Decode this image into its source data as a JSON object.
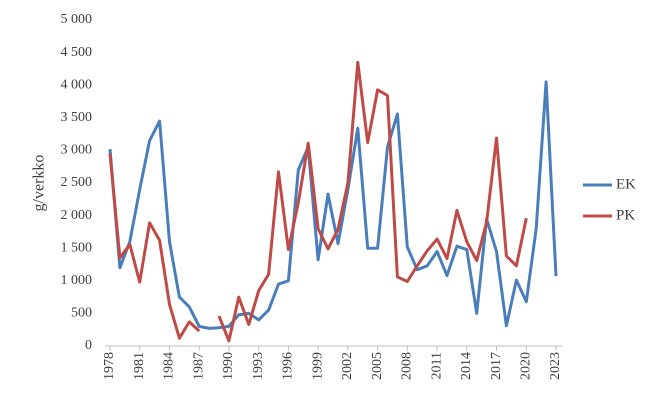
{
  "chart_data": {
    "type": "line",
    "y_label": "g/verkko",
    "x": [
      1978,
      1979,
      1980,
      1981,
      1982,
      1983,
      1984,
      1985,
      1986,
      1987,
      1988,
      1989,
      1990,
      1991,
      1992,
      1993,
      1994,
      1995,
      1996,
      1997,
      1998,
      1999,
      2000,
      2001,
      2002,
      2003,
      2004,
      2005,
      2006,
      2007,
      2008,
      2009,
      2010,
      2011,
      2012,
      2013,
      2014,
      2015,
      2016,
      2017,
      2018,
      2019,
      2020,
      2021,
      2022,
      2023
    ],
    "xlim": [
      1978,
      2023
    ],
    "xticks": [
      1978,
      1981,
      1984,
      1987,
      1990,
      1993,
      1996,
      1999,
      2002,
      2005,
      2008,
      2011,
      2014,
      2017,
      2020,
      2023
    ],
    "ylim": [
      0,
      5000
    ],
    "yticks": [
      0,
      500,
      {
        "value": 1000,
        "label": "1 000"
      },
      {
        "value": 1500,
        "label": "1 500"
      },
      {
        "value": 2000,
        "label": "2 000"
      },
      {
        "value": 2500,
        "label": "2 500"
      },
      {
        "value": 3000,
        "label": "3 000"
      },
      {
        "value": 3500,
        "label": "3 500"
      },
      {
        "value": 4000,
        "label": "4 000"
      },
      {
        "value": 4500,
        "label": "4 500"
      },
      {
        "value": 5000,
        "label": "5 000"
      }
    ],
    "grid": false,
    "legend": "right",
    "series": [
      {
        "name": "EK",
        "color": "#4a7ebb",
        "values": [
          3020,
          1200,
          1600,
          2400,
          3150,
          3450,
          1600,
          750,
          600,
          300,
          270,
          280,
          300,
          480,
          500,
          400,
          550,
          950,
          1000,
          2700,
          3050,
          1320,
          2330,
          1570,
          2400,
          3340,
          1500,
          1500,
          3050,
          3560,
          1520,
          1170,
          1230,
          1450,
          1080,
          1530,
          1480,
          500,
          1950,
          1450,
          310,
          1010,
          680,
          1800,
          4050,
          1070
        ]
      },
      {
        "name": "PK",
        "color": "#be4b48",
        "values": [
          2950,
          1350,
          1560,
          980,
          1890,
          1620,
          640,
          120,
          370,
          230,
          null,
          460,
          80,
          750,
          330,
          850,
          1100,
          2670,
          1480,
          2200,
          3110,
          1800,
          1490,
          1790,
          2500,
          4350,
          3120,
          3930,
          3840,
          1060,
          990,
          1230,
          1460,
          1640,
          1340,
          2080,
          1600,
          1310,
          1900,
          3190,
          1380,
          1230,
          1960,
          null,
          null,
          null
        ]
      }
    ]
  }
}
